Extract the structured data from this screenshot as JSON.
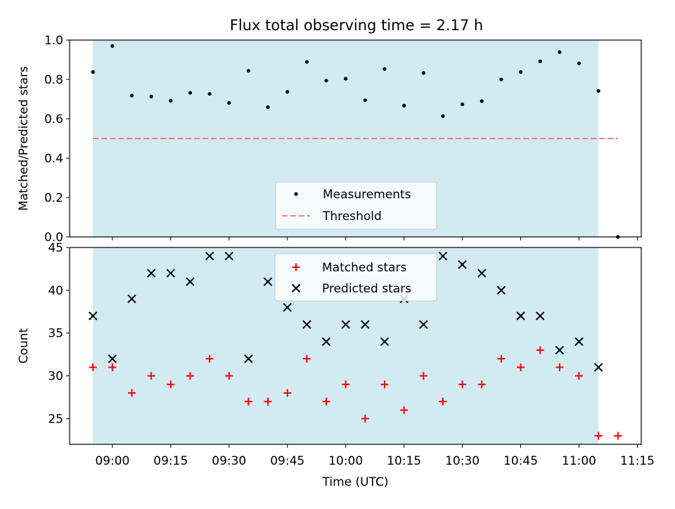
{
  "title": "Flux total observing time = 2.17 h",
  "chart_data": [
    {
      "type": "scatter",
      "ylabel": "Matched/Predicted stars",
      "xlabel": "",
      "ylim": [
        0.0,
        1.0
      ],
      "yticks": [
        "0.0",
        "0.2",
        "0.4",
        "0.6",
        "0.8",
        "1.0"
      ],
      "ytick_values": [
        0.0,
        0.2,
        0.4,
        0.6,
        0.8,
        1.0
      ],
      "shaded_span": [
        "08:55",
        "11:05"
      ],
      "shade_color": "#add8e6",
      "threshold": {
        "value": 0.5,
        "from": "08:55",
        "to": "11:10",
        "color": "#f08080"
      },
      "series": [
        {
          "name": "Measurements",
          "marker": "dot",
          "color": "#000000",
          "x": [
            "08:55",
            "09:00",
            "09:05",
            "09:10",
            "09:15",
            "09:20",
            "09:25",
            "09:30",
            "09:35",
            "09:40",
            "09:45",
            "09:50",
            "09:55",
            "10:00",
            "10:05",
            "10:10",
            "10:15",
            "10:20",
            "10:25",
            "10:30",
            "10:35",
            "10:40",
            "10:45",
            "10:50",
            "10:55",
            "11:00",
            "11:05",
            "11:10"
          ],
          "y": [
            0.838,
            0.97,
            0.718,
            0.713,
            0.692,
            0.732,
            0.727,
            0.681,
            0.844,
            0.659,
            0.737,
            0.889,
            0.794,
            0.804,
            0.694,
            0.853,
            0.667,
            0.833,
            0.614,
            0.674,
            0.69,
            0.8,
            0.838,
            0.892,
            0.939,
            0.882,
            0.742,
            0.0
          ]
        }
      ],
      "legend": {
        "placement": "lower-center",
        "entries": [
          {
            "label": "Measurements",
            "marker": "dot",
            "color": "#000000"
          },
          {
            "label": "Threshold",
            "marker": "dashed-line",
            "color": "#f08080"
          }
        ]
      }
    },
    {
      "type": "scatter",
      "ylabel": "Count",
      "xlabel": "Time (UTC)",
      "ylim": [
        22,
        45
      ],
      "yticks": [
        "25",
        "30",
        "35",
        "40",
        "45"
      ],
      "ytick_values": [
        25,
        30,
        35,
        40,
        45
      ],
      "xlim": [
        "08:49",
        "11:16"
      ],
      "xticks": [
        "09:00",
        "09:15",
        "09:30",
        "09:45",
        "10:00",
        "10:15",
        "10:30",
        "10:45",
        "11:00",
        "11:15"
      ],
      "shaded_span": [
        "08:55",
        "11:05"
      ],
      "shade_color": "#add8e6",
      "series": [
        {
          "name": "Matched stars",
          "marker": "plus",
          "color": "#ff0000",
          "x": [
            "08:55",
            "09:00",
            "09:05",
            "09:10",
            "09:15",
            "09:20",
            "09:25",
            "09:30",
            "09:35",
            "09:40",
            "09:45",
            "09:50",
            "09:55",
            "10:00",
            "10:05",
            "10:10",
            "10:15",
            "10:20",
            "10:25",
            "10:30",
            "10:35",
            "10:40",
            "10:45",
            "10:50",
            "10:55",
            "11:00",
            "11:05",
            "11:10"
          ],
          "y": [
            31,
            31,
            28,
            30,
            29,
            30,
            32,
            30,
            27,
            27,
            28,
            32,
            27,
            29,
            25,
            29,
            26,
            30,
            27,
            29,
            29,
            32,
            31,
            33,
            31,
            30,
            23,
            23
          ]
        },
        {
          "name": "Predicted stars",
          "marker": "x",
          "color": "#000000",
          "x": [
            "08:55",
            "09:00",
            "09:05",
            "09:10",
            "09:15",
            "09:20",
            "09:25",
            "09:30",
            "09:35",
            "09:40",
            "09:45",
            "09:50",
            "09:55",
            "10:00",
            "10:05",
            "10:10",
            "10:15",
            "10:20",
            "10:25",
            "10:30",
            "10:35",
            "10:40",
            "10:45",
            "10:50",
            "10:55",
            "11:00",
            "11:05"
          ],
          "y": [
            37,
            32,
            39,
            42,
            42,
            41,
            44,
            44,
            32,
            41,
            38,
            36,
            34,
            36,
            36,
            34,
            39,
            36,
            44,
            43,
            42,
            40,
            37,
            37,
            33,
            34,
            31
          ]
        }
      ],
      "legend": {
        "placement": "upper-center",
        "entries": [
          {
            "label": "Matched stars",
            "marker": "plus",
            "color": "#ff0000"
          },
          {
            "label": "Predicted stars",
            "marker": "x",
            "color": "#000000"
          }
        ]
      }
    }
  ]
}
